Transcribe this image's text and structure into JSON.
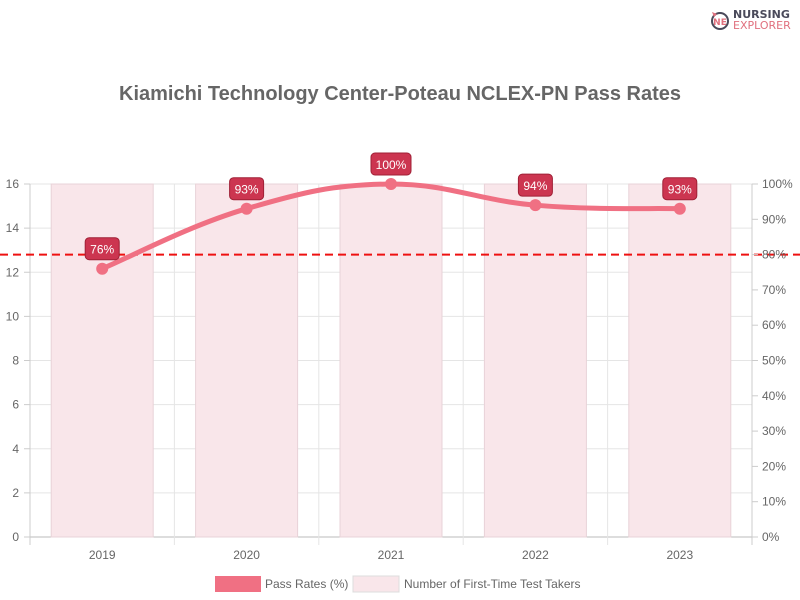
{
  "logo": {
    "line1": "NURSING",
    "line2": "EXPLORER",
    "monogram": "NE"
  },
  "chart_data": {
    "type": "bar",
    "title": "Kiamichi Technology Center-Poteau NCLEX-PN Pass Rates",
    "categories": [
      "2019",
      "2020",
      "2021",
      "2022",
      "2023"
    ],
    "series": [
      {
        "name": "Pass Rates (%)",
        "type": "line",
        "axis": "right",
        "values": [
          76,
          93,
          100,
          94,
          93
        ],
        "labels": [
          "76%",
          "93%",
          "100%",
          "94%",
          "93%"
        ],
        "color": "#f07083"
      },
      {
        "name": "Number of First-Time Test Takers",
        "type": "bar",
        "axis": "left",
        "values": [
          16,
          16,
          16,
          16,
          16
        ],
        "color": "#f9e6ea"
      }
    ],
    "reference_line": {
      "value": 80,
      "axis": "right",
      "style": "dashed",
      "color": "#ee1111"
    },
    "y_left": {
      "range": [
        0,
        16
      ],
      "ticks": [
        "0",
        "2",
        "4",
        "6",
        "8",
        "10",
        "12",
        "14",
        "16"
      ]
    },
    "y_right": {
      "range": [
        0,
        100
      ],
      "ticks": [
        "0%",
        "10%",
        "20%",
        "30%",
        "40%",
        "50%",
        "60%",
        "70%",
        "80%",
        "90%",
        "100%"
      ]
    },
    "grid": true,
    "legend": "bottom",
    "label_color": "#cc3550"
  }
}
